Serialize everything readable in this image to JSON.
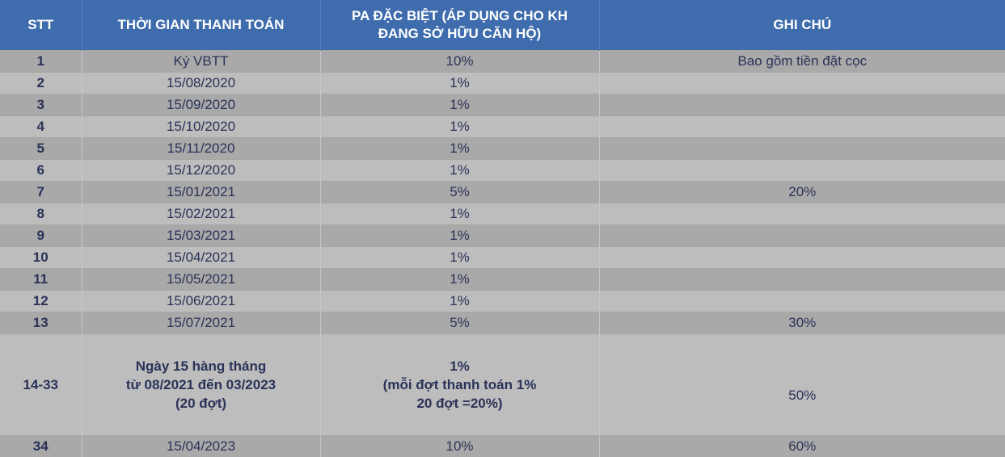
{
  "header": {
    "stt": "STT",
    "time": "THỜI GIAN THANH TOÁN",
    "plan_line1": "PA ĐẶC BIỆT (ÁP DỤNG CHO KH",
    "plan_line2": "ĐANG SỞ HỮU CĂN HỘ)",
    "note": "GHI CHÚ"
  },
  "rows": [
    {
      "stt": "1",
      "time": "Ký VBTT",
      "plan": "10%",
      "note": "Bao gồm tiền đặt cọc"
    },
    {
      "stt": "2",
      "time": "15/08/2020",
      "plan": "1%",
      "note": ""
    },
    {
      "stt": "3",
      "time": "15/09/2020",
      "plan": "1%",
      "note": ""
    },
    {
      "stt": "4",
      "time": "15/10/2020",
      "plan": "1%",
      "note": ""
    },
    {
      "stt": "5",
      "time": "15/11/2020",
      "plan": "1%",
      "note": ""
    },
    {
      "stt": "6",
      "time": "15/12/2020",
      "plan": "1%",
      "note": ""
    },
    {
      "stt": "7",
      "time": "15/01/2021",
      "plan": "5%",
      "note": "20%"
    },
    {
      "stt": "8",
      "time": "15/02/2021",
      "plan": "1%",
      "note": ""
    },
    {
      "stt": "9",
      "time": "15/03/2021",
      "plan": "1%",
      "note": ""
    },
    {
      "stt": "10",
      "time": "15/04/2021",
      "plan": "1%",
      "note": ""
    },
    {
      "stt": "11",
      "time": "15/05/2021",
      "plan": "1%",
      "note": ""
    },
    {
      "stt": "12",
      "time": "15/06/2021",
      "plan": "1%",
      "note": ""
    },
    {
      "stt": "13",
      "time": "15/07/2021",
      "plan": "5%",
      "note": "30%"
    },
    {
      "stt": "14-33",
      "time_lines": [
        "Ngày 15 hàng tháng",
        "từ 08/2021 đến 03/2023",
        "(20 đợt)"
      ],
      "plan_lines": [
        "1%",
        "(mỗi đợt thanh toán 1%",
        "20 đợt =20%)"
      ],
      "note": "50%"
    },
    {
      "stt": "34",
      "time": "15/04/2023",
      "plan": "10%",
      "note": "60%"
    }
  ]
}
